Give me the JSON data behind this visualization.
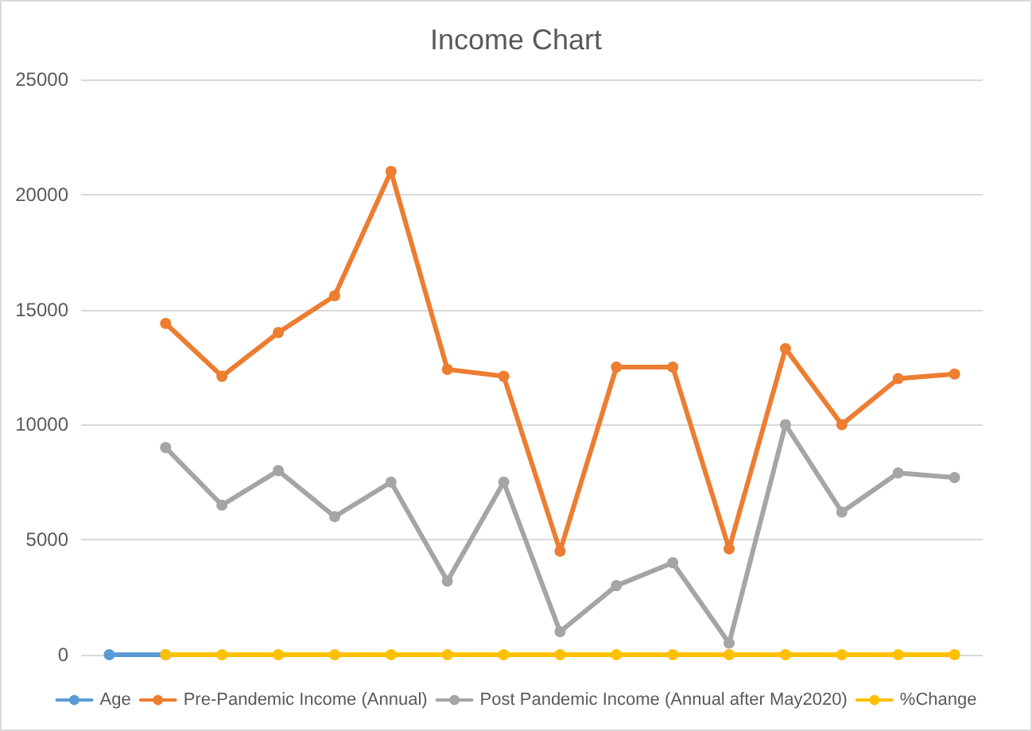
{
  "chart_data": {
    "type": "line",
    "title": "Income Chart",
    "categories": [
      null,
      null,
      null,
      null,
      null,
      null,
      null,
      null,
      null,
      null,
      null,
      null,
      null,
      null,
      null,
      null
    ],
    "series": [
      {
        "name": "Age",
        "color": "#5b9bd5",
        "values": [
          0,
          0,
          null,
          null,
          null,
          null,
          null,
          null,
          null,
          null,
          null,
          null,
          null,
          null,
          null,
          null
        ]
      },
      {
        "name": "Pre-Pandemic Income (Annual)",
        "color": "#ed7d31",
        "values": [
          null,
          14400,
          12100,
          14000,
          15600,
          21000,
          12400,
          12100,
          4500,
          12500,
          12500,
          4600,
          13300,
          10000,
          12000,
          12200
        ]
      },
      {
        "name": "Post Pandemic Income (Annual after May2020)",
        "color": "#a5a5a5",
        "values": [
          null,
          9000,
          6500,
          8000,
          6000,
          7500,
          3200,
          7500,
          1000,
          3000,
          4000,
          500,
          10000,
          6200,
          7900,
          7700
        ]
      },
      {
        "name": "%Change",
        "color": "#ffc000",
        "values": [
          null,
          0,
          0,
          0,
          0,
          0,
          0,
          0,
          0,
          0,
          0,
          0,
          0,
          0,
          0,
          0
        ]
      }
    ],
    "ylim": [
      0,
      25000
    ],
    "yticks": [
      0,
      5000,
      10000,
      15000,
      20000,
      25000
    ],
    "grid": "y",
    "legend": "bottom",
    "marker": "circle",
    "line_style": "solid"
  }
}
